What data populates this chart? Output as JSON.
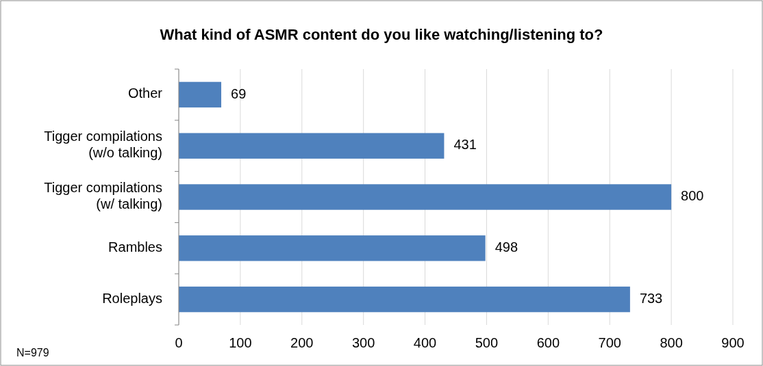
{
  "chart_data": {
    "type": "bar",
    "orientation": "horizontal",
    "title": "What kind of ASMR content do you like watching/listening to?",
    "categories": [
      "Other",
      "Tigger compilations (w/o talking)",
      "Tigger compilations (w/ talking)",
      "Rambles",
      "Roleplays"
    ],
    "values": [
      69,
      431,
      800,
      498,
      733
    ],
    "color": "#4f81bd",
    "xlim": [
      0,
      900
    ],
    "xticks": [
      0,
      100,
      200,
      300,
      400,
      500,
      600,
      700,
      800,
      900
    ],
    "grid": "x",
    "data_labels": true,
    "annotations": [
      "N=979"
    ]
  }
}
